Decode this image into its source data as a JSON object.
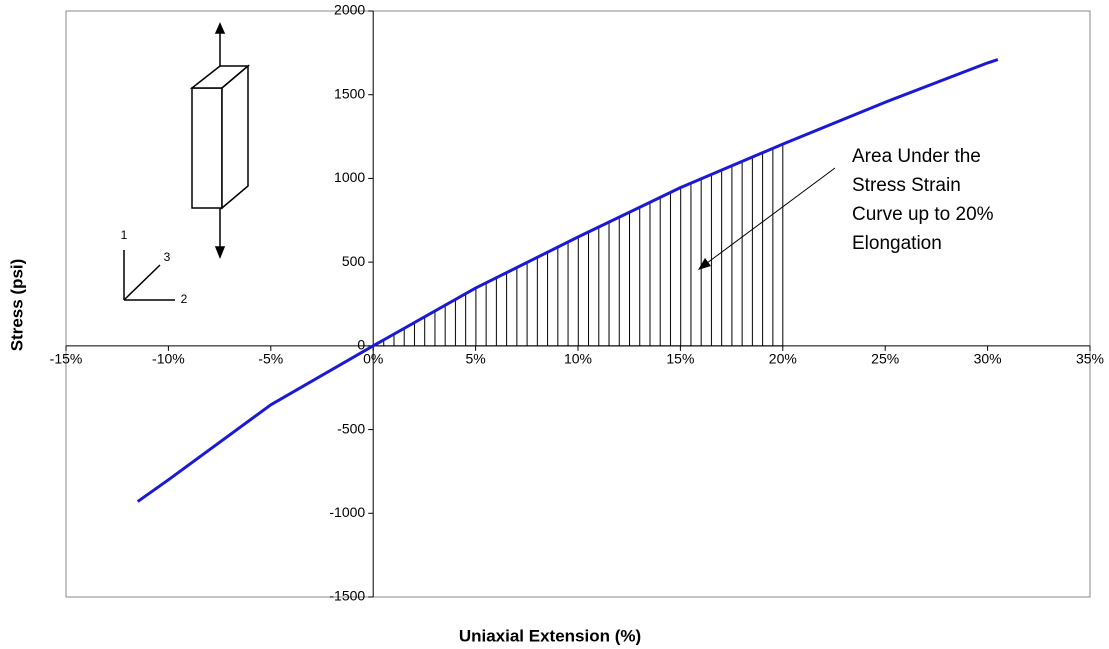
{
  "chart_data": {
    "type": "line",
    "x_label": "Uniaxial Extension (%)",
    "y_label": "Stress (psi)",
    "annotation": [
      "Area Under the",
      "Stress Strain",
      "Curve up to 20%",
      "Elongation"
    ],
    "inset_axis_labels": [
      "1",
      "3",
      "2"
    ],
    "x": [
      -11.5,
      -10,
      -5,
      0,
      5,
      10,
      15,
      20,
      25,
      30,
      30.5
    ],
    "series": [
      {
        "name": "Stress",
        "color": "#1a1ad6",
        "values": [
          -930,
          -800,
          -352,
          0,
          345,
          650,
          945,
          1205,
          1455,
          1690,
          1710
        ]
      }
    ],
    "shaded_to": 20,
    "xlim": [
      -15,
      35
    ],
    "xticks": [
      {
        "value": -15,
        "label": "-15%"
      },
      {
        "value": -10,
        "label": "-10%"
      },
      {
        "value": -5,
        "label": "-5%"
      },
      {
        "value": 0,
        "label": "0%"
      },
      {
        "value": 5,
        "label": "5%"
      },
      {
        "value": 10,
        "label": "10%"
      },
      {
        "value": 15,
        "label": "15%"
      },
      {
        "value": 20,
        "label": "20%"
      },
      {
        "value": 25,
        "label": "25%"
      },
      {
        "value": 30,
        "label": "30%"
      },
      {
        "value": 35,
        "label": "35%"
      }
    ],
    "ylim": [
      -1500,
      2000
    ],
    "yticks": [
      -1500,
      -1000,
      -500,
      0,
      500,
      1000,
      1500,
      2000
    ],
    "grid": false
  }
}
